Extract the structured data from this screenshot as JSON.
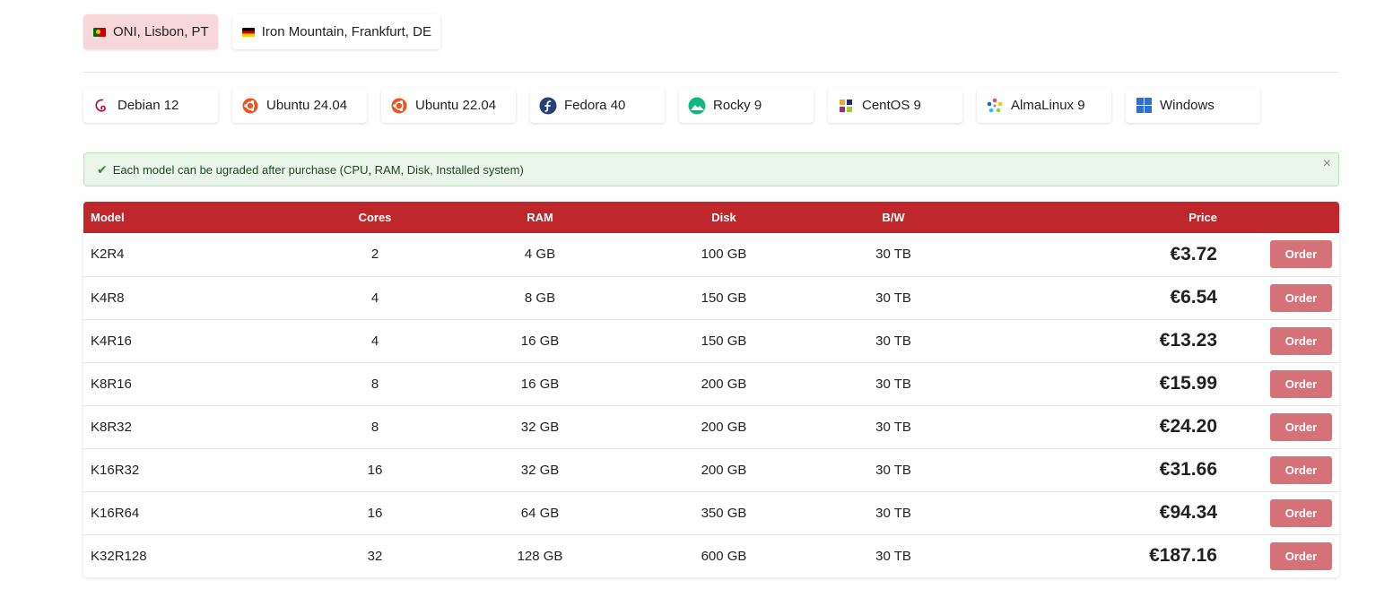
{
  "locations": [
    {
      "label": "ONI, Lisbon, PT",
      "flag": "portugal-flag-icon",
      "active": true
    },
    {
      "label": "Iron Mountain, Frankfurt, DE",
      "flag": "germany-flag-icon",
      "active": false
    }
  ],
  "os": [
    {
      "label": "Debian 12",
      "icon": "debian-icon"
    },
    {
      "label": "Ubuntu 24.04",
      "icon": "ubuntu-icon"
    },
    {
      "label": "Ubuntu 22.04",
      "icon": "ubuntu-icon"
    },
    {
      "label": "Fedora 40",
      "icon": "fedora-icon"
    },
    {
      "label": "Rocky 9",
      "icon": "rocky-icon"
    },
    {
      "label": "CentOS 9",
      "icon": "centos-icon"
    },
    {
      "label": "AlmaLinux 9",
      "icon": "almalinux-icon"
    },
    {
      "label": "Windows",
      "icon": "windows-icon"
    }
  ],
  "alert": {
    "text": "Each model can be ugraded after purchase (CPU, RAM, Disk, Installed system)",
    "close": "×"
  },
  "table": {
    "headers": {
      "model": "Model",
      "cores": "Cores",
      "ram": "RAM",
      "disk": "Disk",
      "bw": "B/W",
      "price": "Price"
    },
    "order_label": "Order",
    "rows": [
      {
        "model": "K2R4",
        "cores": "2",
        "ram": "4 GB",
        "disk": "100 GB",
        "bw": "30 TB",
        "price": "€3.72"
      },
      {
        "model": "K4R8",
        "cores": "4",
        "ram": "8 GB",
        "disk": "150 GB",
        "bw": "30 TB",
        "price": "€6.54"
      },
      {
        "model": "K4R16",
        "cores": "4",
        "ram": "16 GB",
        "disk": "150 GB",
        "bw": "30 TB",
        "price": "€13.23"
      },
      {
        "model": "K8R16",
        "cores": "8",
        "ram": "16 GB",
        "disk": "200 GB",
        "bw": "30 TB",
        "price": "€15.99"
      },
      {
        "model": "K8R32",
        "cores": "8",
        "ram": "32 GB",
        "disk": "200 GB",
        "bw": "30 TB",
        "price": "€24.20"
      },
      {
        "model": "K16R32",
        "cores": "16",
        "ram": "32 GB",
        "disk": "200 GB",
        "bw": "30 TB",
        "price": "€31.66"
      },
      {
        "model": "K16R64",
        "cores": "16",
        "ram": "64 GB",
        "disk": "350 GB",
        "bw": "30 TB",
        "price": "€94.34"
      },
      {
        "model": "K32R128",
        "cores": "32",
        "ram": "128 GB",
        "disk": "600 GB",
        "bw": "30 TB",
        "price": "€187.16"
      }
    ]
  },
  "colors": {
    "header_bg": "#c0272d",
    "order_btn": "#d57278",
    "active_location_bg": "#f8d7da",
    "alert_bg": "#eaf6ea"
  }
}
